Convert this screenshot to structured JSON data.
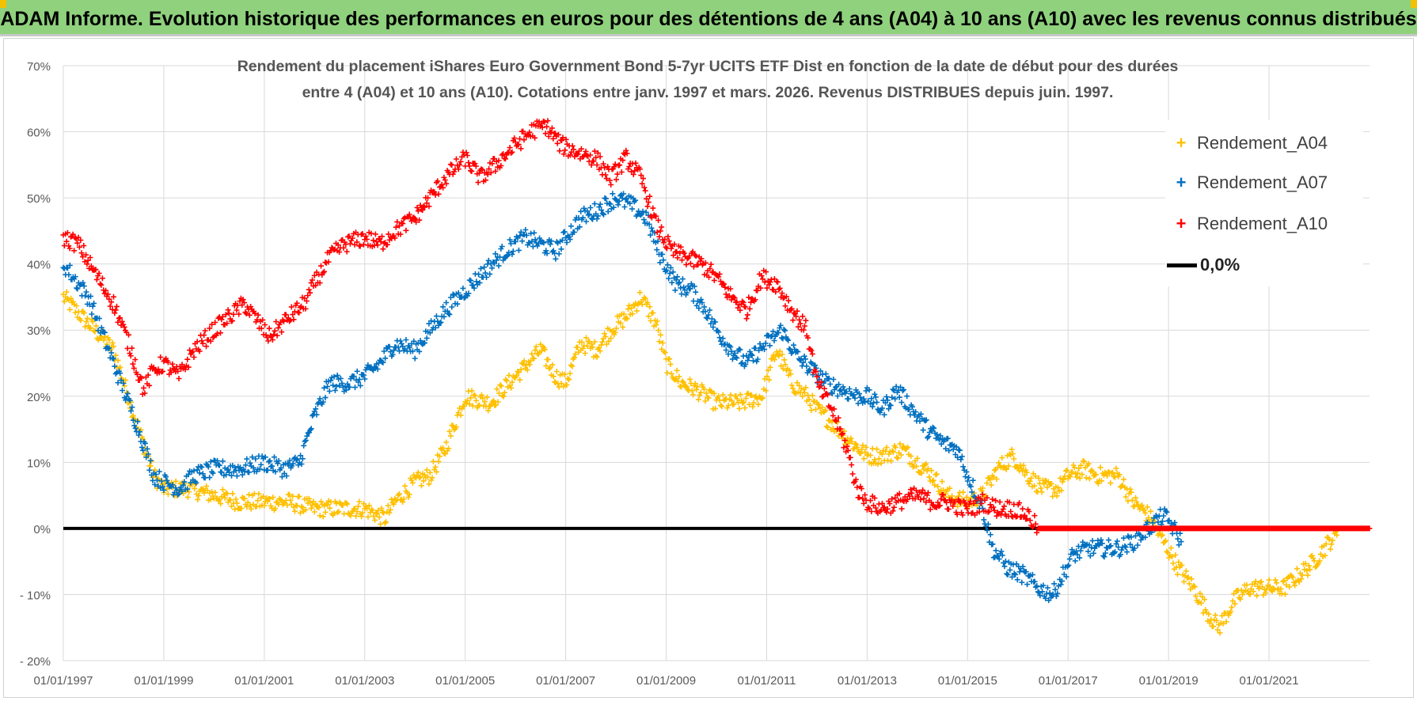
{
  "banner": {
    "title": "ADAM Informe. Evolution historique des performances en euros pour des détentions de 4 ans (A04) à 10 ans (A10) avec les revenus connus distribués"
  },
  "colors": {
    "banner_bg": "#8fd17d",
    "A04": "#ffc000",
    "A07": "#0070c0",
    "A10": "#ff0000",
    "zero": "#000000",
    "grid": "#d9d9d9"
  },
  "chart_data": {
    "type": "scatter",
    "title_line1": "Rendement du placement iShares Euro Government Bond 5-7yr UCITS ETF Dist en fonction de la date de début pour des durées",
    "title_line2": "entre 4 (A04) et 10 ans (A10).  Cotations entre janv. 1997 et mars. 2026.  Revenus DISTRIBUES depuis juin. 1997.",
    "xlabel": "",
    "ylabel": "",
    "xlim": [
      1997.0,
      2023.0
    ],
    "ylim": [
      -20,
      70
    ],
    "grid": true,
    "legend_position": "top-right",
    "y_ticks": [
      70,
      60,
      50,
      40,
      30,
      20,
      10,
      0,
      -10,
      -20
    ],
    "y_tick_labels": [
      "70%",
      "60%",
      "50%",
      "40%",
      "30%",
      "20%",
      "10%",
      "0%",
      "- 10%",
      "- 20%"
    ],
    "x_ticks": [
      1997,
      1999,
      2001,
      2003,
      2005,
      2007,
      2009,
      2011,
      2013,
      2015,
      2017,
      2019,
      2021
    ],
    "x_tick_labels": [
      "01/01/1997",
      "01/01/1999",
      "01/01/2001",
      "01/01/2003",
      "01/01/2005",
      "01/01/2007",
      "01/01/2009",
      "01/01/2011",
      "01/01/2013",
      "01/01/2015",
      "01/01/2017",
      "01/01/2019",
      "01/01/2021"
    ],
    "series": [
      {
        "name": "Rendement_A04",
        "color": "#ffc000",
        "marker": "+",
        "points": [
          [
            1997.0,
            35
          ],
          [
            1997.5,
            31
          ],
          [
            1998.0,
            27
          ],
          [
            1998.5,
            15
          ],
          [
            1998.8,
            8
          ],
          [
            1999.0,
            6
          ],
          [
            1999.5,
            6
          ],
          [
            2000.0,
            5
          ],
          [
            2000.5,
            4
          ],
          [
            2001.0,
            4
          ],
          [
            2001.5,
            4
          ],
          [
            2002.0,
            3
          ],
          [
            2002.5,
            3
          ],
          [
            2003.0,
            3
          ],
          [
            2003.4,
            1.5
          ],
          [
            2003.6,
            4
          ],
          [
            2004.0,
            7
          ],
          [
            2004.3,
            8
          ],
          [
            2004.6,
            12
          ],
          [
            2005.0,
            20
          ],
          [
            2005.5,
            19
          ],
          [
            2006.0,
            23
          ],
          [
            2006.5,
            27
          ],
          [
            2006.8,
            23
          ],
          [
            2007.0,
            22
          ],
          [
            2007.3,
            28
          ],
          [
            2007.6,
            27
          ],
          [
            2007.9,
            30
          ],
          [
            2008.2,
            32
          ],
          [
            2008.5,
            35
          ],
          [
            2008.8,
            31
          ],
          [
            2009.0,
            25
          ],
          [
            2009.3,
            22
          ],
          [
            2009.6,
            21
          ],
          [
            2010.0,
            19
          ],
          [
            2010.5,
            19
          ],
          [
            2010.9,
            20
          ],
          [
            2011.2,
            27
          ],
          [
            2011.5,
            22
          ],
          [
            2011.8,
            20
          ],
          [
            2012.0,
            18
          ],
          [
            2012.3,
            16
          ],
          [
            2012.7,
            13
          ],
          [
            2013.0,
            11
          ],
          [
            2013.3,
            11
          ],
          [
            2013.7,
            12
          ],
          [
            2014.0,
            10
          ],
          [
            2014.3,
            8
          ],
          [
            2014.6,
            5
          ],
          [
            2015.0,
            4
          ],
          [
            2015.3,
            5
          ],
          [
            2015.6,
            9
          ],
          [
            2015.9,
            11
          ],
          [
            2016.2,
            8
          ],
          [
            2016.5,
            6
          ],
          [
            2016.8,
            6
          ],
          [
            2017.0,
            8
          ],
          [
            2017.3,
            9
          ],
          [
            2017.6,
            8
          ],
          [
            2018.0,
            8
          ],
          [
            2018.3,
            4
          ],
          [
            2018.6,
            2
          ],
          [
            2018.9,
            -2
          ],
          [
            2019.2,
            -6
          ],
          [
            2019.5,
            -9
          ],
          [
            2019.8,
            -13
          ],
          [
            2020.0,
            -15
          ],
          [
            2020.3,
            -11
          ],
          [
            2020.6,
            -9
          ],
          [
            2021.0,
            -9
          ],
          [
            2021.3,
            -9
          ],
          [
            2021.6,
            -7
          ],
          [
            2021.9,
            -5
          ],
          [
            2022.2,
            -2
          ],
          [
            2022.35,
            -1
          ]
        ]
      },
      {
        "name": "Rendement_A07",
        "color": "#0070c0",
        "marker": "+",
        "points": [
          [
            1997.0,
            40
          ],
          [
            1997.5,
            35
          ],
          [
            1998.0,
            25
          ],
          [
            1998.5,
            15
          ],
          [
            1998.8,
            8
          ],
          [
            1999.0,
            7
          ],
          [
            1999.3,
            6
          ],
          [
            1999.6,
            8
          ],
          [
            2000.0,
            9
          ],
          [
            2000.5,
            9
          ],
          [
            2001.0,
            10
          ],
          [
            2001.4,
            9
          ],
          [
            2001.7,
            10
          ],
          [
            2002.0,
            17
          ],
          [
            2002.3,
            22
          ],
          [
            2002.7,
            22
          ],
          [
            2003.0,
            23
          ],
          [
            2003.3,
            25
          ],
          [
            2003.6,
            28
          ],
          [
            2004.0,
            27
          ],
          [
            2004.3,
            30
          ],
          [
            2004.6,
            33
          ],
          [
            2005.0,
            36
          ],
          [
            2005.4,
            39
          ],
          [
            2005.8,
            42
          ],
          [
            2006.2,
            44
          ],
          [
            2006.5,
            43
          ],
          [
            2006.8,
            42
          ],
          [
            2007.0,
            44
          ],
          [
            2007.3,
            47
          ],
          [
            2007.6,
            48
          ],
          [
            2008.0,
            50
          ],
          [
            2008.3,
            49
          ],
          [
            2008.6,
            47
          ],
          [
            2008.9,
            41
          ],
          [
            2009.2,
            37
          ],
          [
            2009.5,
            36
          ],
          [
            2009.8,
            33
          ],
          [
            2010.0,
            30
          ],
          [
            2010.3,
            27
          ],
          [
            2010.6,
            25
          ],
          [
            2011.0,
            28
          ],
          [
            2011.3,
            30
          ],
          [
            2011.6,
            26
          ],
          [
            2011.9,
            24
          ],
          [
            2012.2,
            22
          ],
          [
            2012.5,
            21
          ],
          [
            2012.8,
            20
          ],
          [
            2013.0,
            20
          ],
          [
            2013.3,
            18
          ],
          [
            2013.6,
            21
          ],
          [
            2013.9,
            18
          ],
          [
            2014.2,
            15
          ],
          [
            2014.5,
            13
          ],
          [
            2014.8,
            12
          ],
          [
            2015.0,
            8
          ],
          [
            2015.3,
            3
          ],
          [
            2015.5,
            -3
          ],
          [
            2015.8,
            -6
          ],
          [
            2016.1,
            -7
          ],
          [
            2016.4,
            -9
          ],
          [
            2016.7,
            -10
          ],
          [
            2016.9,
            -7
          ],
          [
            2017.1,
            -4
          ],
          [
            2017.4,
            -3
          ],
          [
            2017.7,
            -3
          ],
          [
            2018.0,
            -3
          ],
          [
            2018.3,
            -2
          ],
          [
            2018.6,
            0
          ],
          [
            2018.9,
            2
          ],
          [
            2019.1,
            0
          ],
          [
            2019.25,
            -2
          ]
        ]
      },
      {
        "name": "Rendement_A10",
        "color": "#ff0000",
        "marker": "+",
        "points": [
          [
            1997.0,
            44
          ],
          [
            1997.3,
            43
          ],
          [
            1997.6,
            39
          ],
          [
            1998.0,
            34
          ],
          [
            1998.3,
            28
          ],
          [
            1998.6,
            21
          ],
          [
            1998.8,
            24
          ],
          [
            1999.0,
            25
          ],
          [
            1999.3,
            23
          ],
          [
            1999.6,
            27
          ],
          [
            2000.0,
            30
          ],
          [
            2000.3,
            32
          ],
          [
            2000.6,
            34
          ],
          [
            2000.9,
            31
          ],
          [
            2001.1,
            29
          ],
          [
            2001.5,
            32
          ],
          [
            2001.8,
            34
          ],
          [
            2002.0,
            37
          ],
          [
            2002.3,
            41
          ],
          [
            2002.6,
            43
          ],
          [
            2003.0,
            44
          ],
          [
            2003.3,
            43
          ],
          [
            2003.6,
            45
          ],
          [
            2004.0,
            47
          ],
          [
            2004.3,
            50
          ],
          [
            2004.6,
            53
          ],
          [
            2005.0,
            56
          ],
          [
            2005.3,
            53
          ],
          [
            2005.6,
            55
          ],
          [
            2006.0,
            58
          ],
          [
            2006.3,
            60
          ],
          [
            2006.6,
            61
          ],
          [
            2006.9,
            58
          ],
          [
            2007.2,
            57
          ],
          [
            2007.6,
            56
          ],
          [
            2007.9,
            53
          ],
          [
            2008.2,
            56
          ],
          [
            2008.5,
            53
          ],
          [
            2008.8,
            46
          ],
          [
            2009.1,
            42
          ],
          [
            2009.4,
            41
          ],
          [
            2009.7,
            40
          ],
          [
            2010.0,
            38
          ],
          [
            2010.3,
            35
          ],
          [
            2010.6,
            33
          ],
          [
            2010.9,
            38
          ],
          [
            2011.2,
            37
          ],
          [
            2011.5,
            33
          ],
          [
            2011.8,
            30
          ],
          [
            2012.0,
            22
          ],
          [
            2012.3,
            18
          ],
          [
            2012.6,
            12
          ],
          [
            2012.8,
            6
          ],
          [
            2013.0,
            4
          ],
          [
            2013.3,
            3
          ],
          [
            2013.6,
            4
          ],
          [
            2014.0,
            5
          ],
          [
            2014.3,
            4
          ],
          [
            2014.6,
            4
          ],
          [
            2014.9,
            3
          ],
          [
            2015.1,
            3
          ],
          [
            2015.3,
            4
          ],
          [
            2015.6,
            3
          ],
          [
            2015.9,
            3
          ],
          [
            2016.2,
            2
          ],
          [
            2016.4,
            0
          ],
          [
            2017.0,
            0
          ],
          [
            2018.0,
            0
          ],
          [
            2019.0,
            0
          ],
          [
            2020.0,
            0
          ],
          [
            2021.0,
            0
          ],
          [
            2022.0,
            0
          ],
          [
            2023.0,
            0
          ]
        ]
      },
      {
        "name": "0,0%",
        "color": "#000000",
        "marker": "line",
        "points": [
          [
            1997.0,
            0
          ],
          [
            2023.0,
            0
          ]
        ]
      }
    ]
  },
  "legend": {
    "items": [
      {
        "label": "Rendement_A04",
        "mark": "+"
      },
      {
        "label": "Rendement_A07",
        "mark": "+"
      },
      {
        "label": "Rendement_A10",
        "mark": "+"
      },
      {
        "label": "0,0%",
        "mark": "line"
      }
    ]
  }
}
